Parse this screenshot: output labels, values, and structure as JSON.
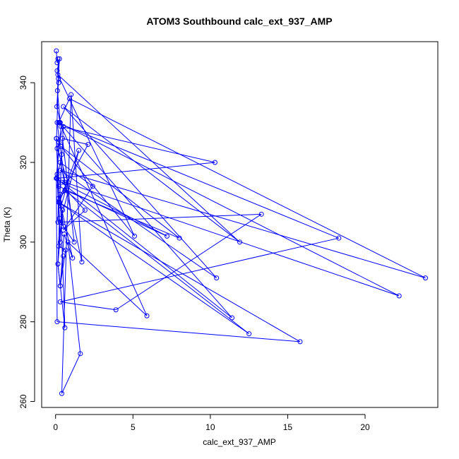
{
  "chart_data": {
    "type": "line",
    "title": "ATOM3 Southbound calc_ext_937_AMP",
    "xlabel": "calc_ext_937_AMP",
    "ylabel": "Theta (K)",
    "xlim": [
      -0.9,
      24.7
    ],
    "ylim": [
      258.5,
      350.3
    ],
    "x_ticks": [
      0,
      5,
      10,
      15,
      20
    ],
    "y_ticks": [
      260,
      280,
      300,
      320,
      340
    ],
    "x_tick_labels": [
      "0",
      "5",
      "10",
      "15",
      "20"
    ],
    "y_tick_labels": [
      "260",
      "280",
      "300",
      "320",
      "340"
    ],
    "grid": false,
    "legend": "none",
    "line_color": "#0000ff",
    "marker": "open-circle",
    "series": [
      {
        "x": [
          0.05,
          0.1,
          0.15,
          0.2,
          0.1,
          0.25,
          0.12,
          0.3,
          0.08,
          0.18,
          0.06,
          0.22,
          0.05,
          0.35,
          10.3,
          0.1,
          0.4,
          7.2,
          0.2,
          0.15,
          13.3,
          3.9,
          0.3,
          18.3,
          0.1,
          0.6,
          22.2,
          0.2,
          0.9,
          23.9,
          0.3,
          10.4,
          0.5,
          11.9,
          0.15,
          5.1,
          0.35,
          8.0,
          0.6,
          12.5,
          0.2,
          15.8,
          0.1,
          0.05,
          11.4,
          0.25,
          5.9,
          0.8,
          1.6,
          0.4,
          1.0,
          1.7,
          0.3,
          2.4,
          0.5,
          1.9,
          0.7,
          0.2,
          2.1,
          0.45,
          1.2,
          0.3,
          1.5,
          0.25,
          0.5,
          0.1,
          0.8,
          0.35,
          1.1,
          0.55,
          0.3,
          0.65,
          0.2,
          0.45,
          0.15,
          0.6,
          0.3,
          0.5,
          0.25,
          0.4,
          0.1,
          0.3,
          0.05,
          0.2,
          0.1,
          0.25,
          0.15,
          0.3,
          0.5
        ],
        "y": [
          348,
          345,
          346,
          340,
          343,
          346,
          338,
          330,
          334,
          341,
          326,
          325,
          316,
          329,
          320,
          316,
          315,
          301.5,
          314,
          305,
          307,
          283,
          285,
          301,
          330,
          315,
          286.5,
          330,
          336,
          291,
          318,
          291,
          334,
          300,
          342,
          301.5,
          324,
          301,
          313,
          277,
          310,
          275,
          280,
          316,
          281,
          330,
          281.5,
          300,
          272,
          262,
          337,
          295,
          320,
          314,
          303,
          308,
          313,
          311,
          324.5,
          326,
          300,
          305,
          323,
          310,
          329,
          323.5,
          315,
          309,
          296,
          302,
          289,
          298,
          299,
          308,
          294.5,
          278.5,
          312,
          304,
          310,
          322,
          316,
          300,
          326,
          314,
          317,
          306,
          294.5,
          289,
          296.5
        ]
      }
    ]
  }
}
